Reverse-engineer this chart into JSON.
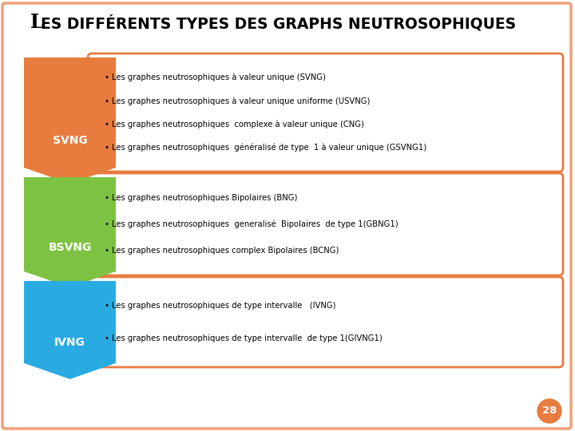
{
  "background_color": "#FFFFFF",
  "border_color": "#F2A07B",
  "page_number": "28",
  "page_circle_color": "#E87B3E",
  "title_L": "L",
  "title_rest": "ES DIFFÉRENTS TYPES DES GRAPHS NEUTROSOPHIQUES",
  "rows": [
    {
      "label": "SVNG",
      "arrow_color": "#E87B3E",
      "box_border_color": "#E87B3E",
      "bullets": [
        "Les graphes neutrosophiques à valeur unique (SVNG)",
        "Les graphes neutrosophiques à valeur unique uniforme (USVNG)",
        "Les graphes neutrosophiques  complexe à valeur unique (CNG)",
        "Les graphes neutrosophiques  généralisé de type  1 à valeur unique (GSVNG1)"
      ]
    },
    {
      "label": "BSVNG",
      "arrow_color": "#7DC242",
      "box_border_color": "#E87B3E",
      "bullets": [
        "Les graphes neutrosophiques Bipolaires (BNG)",
        "Les graphes neutrosophiques  generalisé  Bipolaires  de type 1(GBNG1)",
        "Les graphes neutrosophiques complex Bipolaires (BCNG)"
      ]
    },
    {
      "label": "IVNG",
      "arrow_color": "#29ABE2",
      "box_border_color": "#E87B3E",
      "bullets": [
        "Les graphes neutrosophiques de type intervalle   (IVNG)",
        "Les graphes neutrosophiques de type intervalle  de type 1(GIVNG1)"
      ]
    }
  ]
}
